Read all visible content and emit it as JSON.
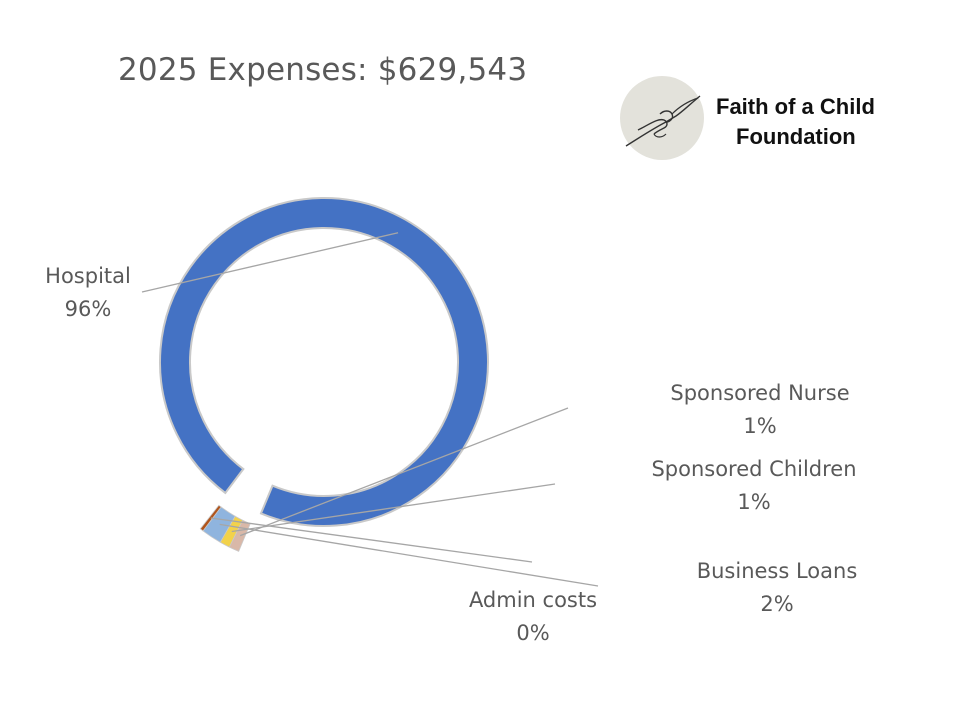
{
  "logo": {
    "name_line1": "Faith of a Child",
    "name_line2": "Foundation",
    "icon": "hands-reaching-icon"
  },
  "chart_data": {
    "type": "pie",
    "style": "donut",
    "title": "2025 Expenses:  $629,543",
    "categories": [
      "Hospital",
      "Sponsored Nurse",
      "Sponsored Children",
      "Business Loans",
      "Admin costs"
    ],
    "values": [
      96,
      1,
      1,
      2,
      0
    ],
    "value_labels": [
      "96%",
      "1%",
      "1%",
      "2%",
      "0%"
    ],
    "exploded": [
      "Sponsored Nurse",
      "Sponsored Children",
      "Business Loans",
      "Admin costs"
    ],
    "colors": [
      "#4472c4",
      "#d9b8a8",
      "#f2d24b",
      "#8fb4de",
      "#b0541b"
    ],
    "legend": "none"
  }
}
